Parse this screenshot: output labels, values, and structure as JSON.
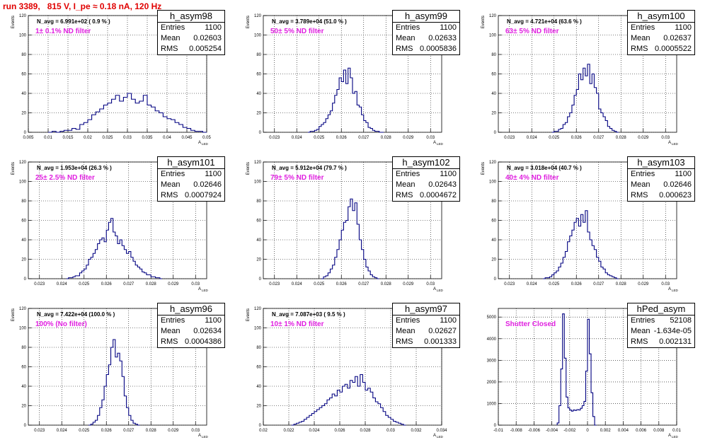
{
  "page_title": "run 3389,   815 V, I_pe ≈ 0.18 nA, 120 Hz",
  "colors": {
    "hist": "#000080",
    "title": "#e00000",
    "label": "#e020e0"
  },
  "panels": [
    {
      "name": "h_asym98",
      "header": "N_avg = 6.991e+02 ( 0.9 % )",
      "label": "1± 0.1% ND filter",
      "entries": "1100",
      "mean": "0.02603",
      "rms": "0.005254"
    },
    {
      "name": "h_asym99",
      "header": "N_avg = 3.789e+04 (51.0 % )",
      "label": "50± 5% ND filter",
      "entries": "1100",
      "mean": "0.02633",
      "rms": "0.0005836"
    },
    {
      "name": "h_asym100",
      "header": "N_avg = 4.721e+04 (63.6 % )",
      "label": "63± 5% ND filter",
      "entries": "1100",
      "mean": "0.02637",
      "rms": "0.0005522"
    },
    {
      "name": "h_asym101",
      "header": "N_avg = 1.953e+04 (26.3 % )",
      "label": "25± 2.5% ND filter",
      "entries": "1100",
      "mean": "0.02646",
      "rms": "0.0007924"
    },
    {
      "name": "h_asym102",
      "header": "N_avg = 5.912e+04 (79.7 % )",
      "label": "79± 5% ND filter",
      "entries": "1100",
      "mean": "0.02643",
      "rms": "0.0004672"
    },
    {
      "name": "h_asym103",
      "header": "N_avg = 3.018e+04 (40.7 % )",
      "label": "40± 4% ND filter",
      "entries": "1100",
      "mean": "0.02646",
      "rms": "0.000623"
    },
    {
      "name": "h_asym96",
      "header": "N_avg = 7.422e+04 (100.0 % )",
      "label": "100% (No filter)",
      "entries": "1100",
      "mean": "0.02634",
      "rms": "0.0004386"
    },
    {
      "name": "h_asym97",
      "header": "N_avg = 7.087e+03 ( 9.5 % )",
      "label": "10± 1% ND filter",
      "entries": "1100",
      "mean": "0.02627",
      "rms": "0.001333"
    },
    {
      "name": "hPed_asym",
      "header": "",
      "label": "Shutter Closed",
      "entries": "52108",
      "mean": "-1.634e-05",
      "rms": "0.002131"
    }
  ],
  "chart_data": [
    {
      "type": "histogram",
      "title": "h_asym98",
      "xlabel": "A",
      "xlabel_sub": "LED",
      "ylabel": "Events",
      "xlim": [
        0.005,
        0.05
      ],
      "ylim": [
        0,
        120
      ],
      "xticks": [
        "0.005",
        "0.01",
        "0.015",
        "0.02",
        "0.025",
        "0.03",
        "0.035",
        "0.04",
        "0.045",
        "0.05"
      ],
      "yticks": [
        "0",
        "20",
        "40",
        "60",
        "80",
        "100",
        "120"
      ],
      "bins": {
        "x0": 0.01,
        "width": 0.001,
        "counts": [
          0,
          1,
          0,
          1,
          2,
          2,
          4,
          3,
          8,
          10,
          13,
          18,
          21,
          24,
          28,
          30,
          34,
          38,
          32,
          36,
          40,
          34,
          30,
          32,
          38,
          28,
          26,
          22,
          20,
          16,
          14,
          13,
          10,
          8,
          5,
          4,
          2,
          1,
          1,
          0
        ]
      }
    },
    {
      "type": "histogram",
      "title": "h_asym99",
      "xlabel": "A",
      "xlabel_sub": "LED",
      "ylabel": "Events",
      "xlim": [
        0.0225,
        0.0305
      ],
      "ylim": [
        0,
        120
      ],
      "xticks": [
        "0.023",
        "0.024",
        "0.025",
        "0.026",
        "0.027",
        "0.028",
        "0.029",
        "0.03"
      ],
      "yticks": [
        "0",
        "20",
        "40",
        "60",
        "80",
        "100",
        "120"
      ],
      "bins": {
        "x0": 0.0245,
        "width": 0.0001,
        "counts": [
          0,
          1,
          1,
          2,
          3,
          6,
          8,
          10,
          14,
          18,
          22,
          30,
          38,
          44,
          56,
          52,
          64,
          50,
          66,
          56,
          40,
          42,
          28,
          26,
          18,
          12,
          10,
          5,
          4,
          2,
          1,
          1,
          0,
          0
        ]
      }
    },
    {
      "type": "histogram",
      "title": "h_asym100",
      "xlabel": "A",
      "xlabel_sub": "LED",
      "ylabel": "Events",
      "xlim": [
        0.0225,
        0.0305
      ],
      "ylim": [
        0,
        120
      ],
      "xticks": [
        "0.023",
        "0.024",
        "0.025",
        "0.026",
        "0.027",
        "0.028",
        "0.029",
        "0.03"
      ],
      "yticks": [
        "0",
        "20",
        "40",
        "60",
        "80",
        "100",
        "120"
      ],
      "bins": {
        "x0": 0.0249,
        "width": 0.0001,
        "counts": [
          0,
          1,
          1,
          3,
          4,
          8,
          10,
          16,
          20,
          28,
          38,
          44,
          60,
          54,
          66,
          58,
          70,
          50,
          60,
          46,
          40,
          24,
          20,
          16,
          12,
          6,
          4,
          2,
          1,
          0
        ]
      }
    },
    {
      "type": "histogram",
      "title": "h_asym101",
      "xlabel": "A",
      "xlabel_sub": "LED",
      "ylabel": "Events",
      "xlim": [
        0.0225,
        0.0305
      ],
      "ylim": [
        0,
        120
      ],
      "xticks": [
        "0.023",
        "0.024",
        "0.025",
        "0.026",
        "0.027",
        "0.028",
        "0.029",
        "0.03"
      ],
      "yticks": [
        "0",
        "20",
        "40",
        "60",
        "80",
        "100",
        "120"
      ],
      "bins": {
        "x0": 0.0242,
        "width": 0.0001,
        "counts": [
          0,
          1,
          1,
          2,
          3,
          3,
          6,
          8,
          10,
          14,
          20,
          22,
          26,
          30,
          36,
          40,
          42,
          38,
          50,
          58,
          62,
          48,
          44,
          36,
          40,
          34,
          30,
          26,
          28,
          22,
          18,
          14,
          12,
          10,
          7,
          6,
          4,
          4,
          2,
          2,
          1,
          1,
          0
        ]
      }
    },
    {
      "type": "histogram",
      "title": "h_asym102",
      "xlabel": "A",
      "xlabel_sub": "LED",
      "ylabel": "Events",
      "xlim": [
        0.0225,
        0.0305
      ],
      "ylim": [
        0,
        120
      ],
      "xticks": [
        "0.023",
        "0.024",
        "0.025",
        "0.026",
        "0.027",
        "0.028",
        "0.029",
        "0.03"
      ],
      "yticks": [
        "0",
        "20",
        "40",
        "60",
        "80",
        "100",
        "120"
      ],
      "bins": {
        "x0": 0.0251,
        "width": 0.0001,
        "counts": [
          0,
          2,
          3,
          6,
          10,
          14,
          22,
          30,
          40,
          50,
          58,
          60,
          74,
          82,
          70,
          78,
          56,
          40,
          30,
          20,
          12,
          8,
          4,
          2,
          1,
          0
        ]
      }
    },
    {
      "type": "histogram",
      "title": "h_asym103",
      "xlabel": "A",
      "xlabel_sub": "LED",
      "ylabel": "Events",
      "xlim": [
        0.0225,
        0.0305
      ],
      "ylim": [
        0,
        120
      ],
      "xticks": [
        "0.023",
        "0.024",
        "0.025",
        "0.026",
        "0.027",
        "0.028",
        "0.029",
        "0.03"
      ],
      "yticks": [
        "0",
        "20",
        "40",
        "60",
        "80",
        "100",
        "120"
      ],
      "bins": {
        "x0": 0.0245,
        "width": 0.0001,
        "counts": [
          0,
          1,
          1,
          2,
          4,
          6,
          8,
          12,
          16,
          22,
          28,
          38,
          44,
          50,
          58,
          62,
          54,
          66,
          58,
          70,
          48,
          40,
          34,
          30,
          22,
          18,
          12,
          10,
          6,
          4,
          3,
          2,
          1,
          0
        ]
      }
    },
    {
      "type": "histogram",
      "title": "h_asym96",
      "xlabel": "A",
      "xlabel_sub": "LED",
      "ylabel": "Events",
      "xlim": [
        0.0225,
        0.0305
      ],
      "ylim": [
        0,
        120
      ],
      "xticks": [
        "0.023",
        "0.024",
        "0.025",
        "0.026",
        "0.027",
        "0.028",
        "0.029",
        "0.03"
      ],
      "yticks": [
        "0",
        "20",
        "40",
        "60",
        "80",
        "100",
        "120"
      ],
      "bins": {
        "x0": 0.0252,
        "width": 0.0001,
        "counts": [
          0,
          1,
          3,
          5,
          10,
          18,
          26,
          40,
          52,
          62,
          80,
          88,
          70,
          74,
          66,
          50,
          30,
          18,
          10,
          5,
          2,
          1,
          0
        ]
      }
    },
    {
      "type": "histogram",
      "title": "h_asym97",
      "xlabel": "A",
      "xlabel_sub": "LED",
      "ylabel": "Events",
      "xlim": [
        0.02,
        0.034
      ],
      "ylim": [
        0,
        120
      ],
      "xticks": [
        "0.02",
        "0.022",
        "0.024",
        "0.026",
        "0.028",
        "0.03",
        "0.032",
        "0.034"
      ],
      "yticks": [
        "0",
        "20",
        "40",
        "60",
        "80",
        "100",
        "120"
      ],
      "bins": {
        "x0": 0.0222,
        "width": 0.0002,
        "counts": [
          0,
          1,
          2,
          3,
          4,
          6,
          8,
          10,
          12,
          14,
          16,
          18,
          20,
          22,
          26,
          28,
          32,
          30,
          36,
          34,
          40,
          42,
          38,
          46,
          44,
          50,
          40,
          52,
          44,
          36,
          38,
          34,
          28,
          24,
          22,
          18,
          14,
          10,
          8,
          6,
          4,
          3,
          2,
          1,
          0
        ]
      }
    },
    {
      "type": "histogram",
      "title": "hPed_asym",
      "xlabel": "A",
      "xlabel_sub": "LED",
      "ylabel": "",
      "xlim": [
        -0.01,
        0.01
      ],
      "ylim": [
        0,
        5400
      ],
      "xticks": [
        "-0.01",
        "-0.008",
        "-0.006",
        "-0.004",
        "-0.002",
        "0",
        "0.002",
        "0.004",
        "0.006",
        "0.008",
        "0.01"
      ],
      "yticks": [
        "0",
        "1000",
        "2000",
        "3000",
        "4000",
        "5000"
      ],
      "bins": {
        "x0": -0.0034,
        "width": 0.0002,
        "counts": [
          100,
          900,
          2600,
          5150,
          3100,
          1300,
          800,
          700,
          650,
          700,
          680,
          720,
          700,
          780,
          900,
          1100,
          2500,
          4900,
          3300,
          1500,
          400,
          0
        ]
      }
    }
  ]
}
